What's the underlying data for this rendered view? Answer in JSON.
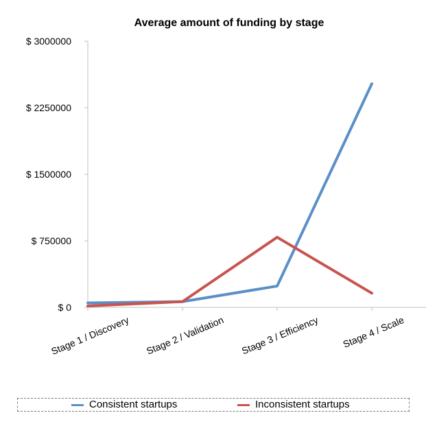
{
  "chart_data": {
    "type": "line",
    "title": "Average amount of funding by stage",
    "xlabel": "",
    "ylabel": "",
    "categories": [
      "Stage 1 / Discovery",
      "Stage 2 / Validation",
      "Stage 3 / Efficiency",
      "Stage 4 / Scale"
    ],
    "y_tick_labels": [
      "$ 0",
      "$ 750000",
      "$ 1500000",
      "$ 2250000",
      "$ 3000000"
    ],
    "y_ticks": [
      0,
      750000,
      1500000,
      2250000,
      3000000
    ],
    "ylim": [
      0,
      3000000
    ],
    "grid": false,
    "legend_position": "bottom",
    "series": [
      {
        "name": "Consistent startups",
        "color": "#5B8FC7",
        "values": [
          50000,
          65000,
          240000,
          2520000
        ]
      },
      {
        "name": "Inconsistent startups",
        "color": "#C85450",
        "values": [
          15000,
          65000,
          790000,
          160000
        ]
      }
    ]
  }
}
